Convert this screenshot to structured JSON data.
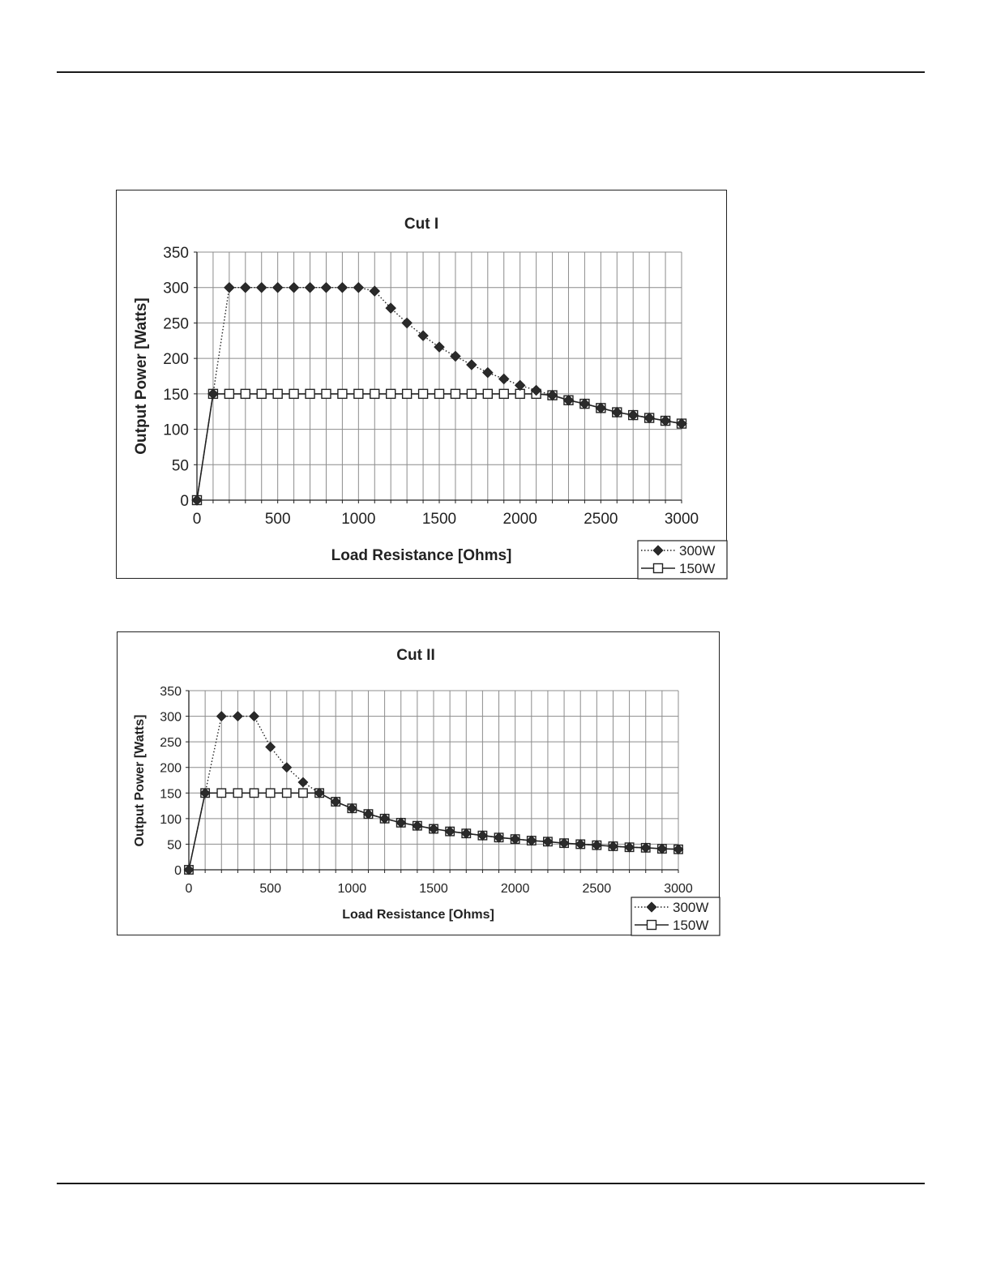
{
  "colors": {
    "ink": "#222222",
    "grid": "#8c8c8c",
    "marker_fill": "#2a2a2a",
    "open_marker_fill": "#ffffff"
  },
  "chart_data": [
    {
      "type": "line",
      "title": "Cut I",
      "xlabel": "Load Resistance [Ohms]",
      "ylabel": "Output Power [Watts]",
      "xlim": [
        0,
        3000
      ],
      "ylim": [
        0,
        350
      ],
      "x_ticks": [
        "0",
        "500",
        "1000",
        "1500",
        "2000",
        "2500",
        "3000"
      ],
      "y_ticks": [
        "350",
        "300",
        "250",
        "200",
        "150",
        "100",
        "50",
        "0"
      ],
      "grid": true,
      "legend_position": "bottom-right",
      "series": [
        {
          "name": "300W",
          "line": "dotted",
          "marker": "diamond-filled",
          "x": [
            0,
            100,
            200,
            300,
            400,
            500,
            600,
            700,
            800,
            900,
            1000,
            1100,
            1200,
            1300,
            1400,
            1500,
            1600,
            1700,
            1800,
            1900,
            2000,
            2100,
            2200,
            2300,
            2400,
            2500,
            2600,
            2700,
            2800,
            2900,
            3000
          ],
          "y": [
            0,
            150,
            300,
            300,
            300,
            300,
            300,
            300,
            300,
            300,
            300,
            295,
            271,
            250,
            232,
            216,
            203,
            191,
            180,
            171,
            162,
            155,
            148,
            141,
            136,
            130,
            124,
            120,
            116,
            112,
            108
          ]
        },
        {
          "name": "150W",
          "line": "solid",
          "marker": "square-open",
          "x": [
            0,
            100,
            200,
            300,
            400,
            500,
            600,
            700,
            800,
            900,
            1000,
            1100,
            1200,
            1300,
            1400,
            1500,
            1600,
            1700,
            1800,
            1900,
            2000,
            2100,
            2200,
            2300,
            2400,
            2500,
            2600,
            2700,
            2800,
            2900,
            3000
          ],
          "y": [
            0,
            150,
            150,
            150,
            150,
            150,
            150,
            150,
            150,
            150,
            150,
            150,
            150,
            150,
            150,
            150,
            150,
            150,
            150,
            150,
            150,
            150,
            148,
            141,
            136,
            130,
            124,
            120,
            116,
            112,
            108
          ]
        }
      ]
    },
    {
      "type": "line",
      "title": "Cut II",
      "xlabel": "Load Resistance [Ohms]",
      "ylabel": "Output Power [Watts]",
      "xlim": [
        0,
        3000
      ],
      "ylim": [
        0,
        350
      ],
      "x_ticks": [
        "0",
        "500",
        "1000",
        "1500",
        "2000",
        "2500",
        "3000"
      ],
      "y_ticks": [
        "350",
        "300",
        "250",
        "200",
        "150",
        "100",
        "50",
        "0"
      ],
      "grid": true,
      "legend_position": "bottom-right",
      "series": [
        {
          "name": "300W",
          "line": "dotted",
          "marker": "diamond-filled",
          "x": [
            0,
            100,
            200,
            300,
            400,
            500,
            600,
            700,
            800,
            900,
            1000,
            1100,
            1200,
            1300,
            1400,
            1500,
            1600,
            1700,
            1800,
            1900,
            2000,
            2100,
            2200,
            2300,
            2400,
            2500,
            2600,
            2700,
            2800,
            2900,
            3000
          ],
          "y": [
            0,
            150,
            300,
            300,
            300,
            240,
            200,
            171,
            150,
            133,
            120,
            109,
            100,
            92,
            86,
            80,
            75,
            71,
            67,
            63,
            60,
            57,
            55,
            52,
            50,
            48,
            46,
            44,
            43,
            41,
            40
          ]
        },
        {
          "name": "150W",
          "line": "solid",
          "marker": "square-open",
          "x": [
            0,
            100,
            200,
            300,
            400,
            500,
            600,
            700,
            800,
            900,
            1000,
            1100,
            1200,
            1300,
            1400,
            1500,
            1600,
            1700,
            1800,
            1900,
            2000,
            2100,
            2200,
            2300,
            2400,
            2500,
            2600,
            2700,
            2800,
            2900,
            3000
          ],
          "y": [
            0,
            150,
            150,
            150,
            150,
            150,
            150,
            150,
            150,
            133,
            120,
            109,
            100,
            92,
            86,
            80,
            75,
            71,
            67,
            63,
            60,
            57,
            55,
            52,
            50,
            48,
            46,
            44,
            43,
            41,
            40
          ]
        }
      ]
    }
  ]
}
